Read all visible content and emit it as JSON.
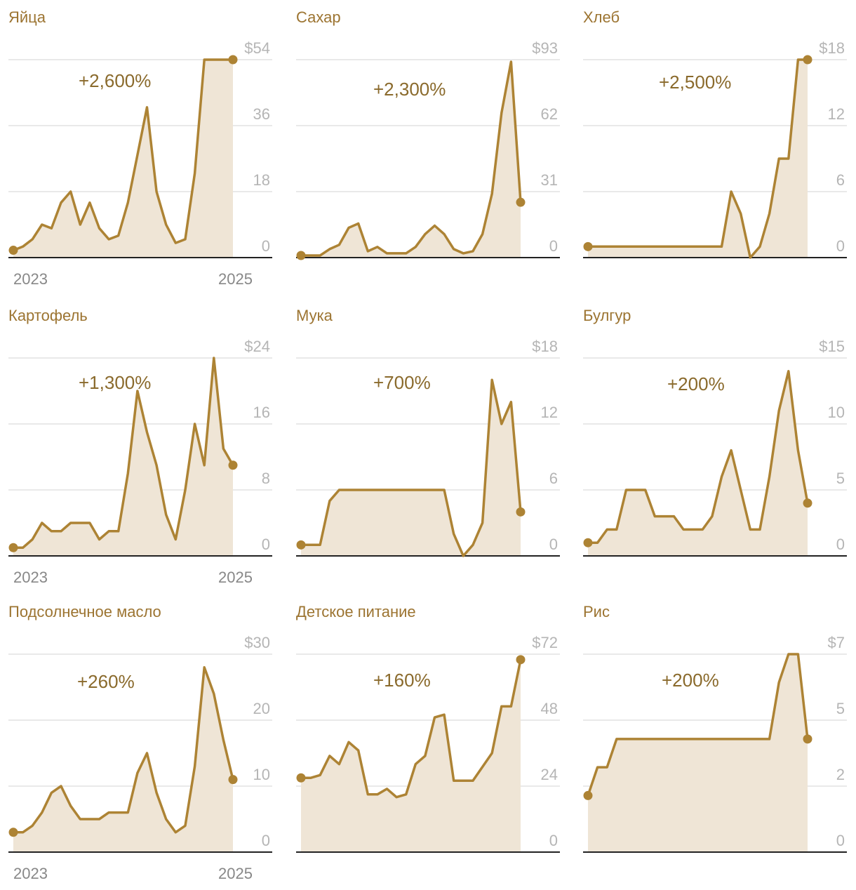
{
  "colors": {
    "line": "#ad8334",
    "fill": "#efe5d6",
    "grid": "#e2e2e2",
    "baseline": "#222222",
    "title": "#9c7431",
    "change": "#8a6a2c",
    "tick": "#b5b5b5",
    "year": "#888888"
  },
  "chart_data": [
    {
      "type": "area",
      "title": "Яйца",
      "change_label": "+2,600%",
      "y_ticks": [
        "0",
        "18",
        "36",
        "$54"
      ],
      "ylim": [
        0,
        54
      ],
      "x_labels": [
        "2023",
        "2025"
      ],
      "values": [
        2,
        3,
        5,
        9,
        8,
        15,
        18,
        9,
        15,
        8,
        5,
        6,
        15,
        28,
        41,
        18,
        9,
        4,
        5,
        23,
        54,
        54,
        54,
        54
      ]
    },
    {
      "type": "area",
      "title": "Сахар",
      "change_label": "+2,300%",
      "y_ticks": [
        "0",
        "31",
        "62",
        "$93"
      ],
      "ylim": [
        0,
        93
      ],
      "x_labels": [],
      "values": [
        1,
        1,
        1,
        4,
        6,
        14,
        16,
        3,
        5,
        2,
        2,
        2,
        5,
        11,
        15,
        11,
        4,
        2,
        3,
        11,
        30,
        68,
        92,
        26
      ]
    },
    {
      "type": "area",
      "title": "Хлеб",
      "change_label": "+2,500%",
      "y_ticks": [
        "0",
        "6",
        "12",
        "$18"
      ],
      "ylim": [
        0,
        18
      ],
      "x_labels": [],
      "values": [
        1,
        1,
        1,
        1,
        1,
        1,
        1,
        1,
        1,
        1,
        1,
        1,
        1,
        1,
        1,
        6,
        4,
        0,
        1,
        4,
        9,
        9,
        18,
        18
      ]
    },
    {
      "type": "area",
      "title": "Картофель",
      "change_label": "+1,300%",
      "y_ticks": [
        "0",
        "8",
        "16",
        "$24"
      ],
      "ylim": [
        0,
        24
      ],
      "x_labels": [
        "2023",
        "2025"
      ],
      "values": [
        1,
        1,
        2,
        4,
        3,
        3,
        4,
        4,
        4,
        2,
        3,
        3,
        10,
        20,
        15,
        11,
        5,
        2,
        8,
        16,
        11,
        24,
        13,
        11
      ]
    },
    {
      "type": "area",
      "title": "Мука",
      "change_label": "+700%",
      "y_ticks": [
        "0",
        "6",
        "12",
        "$18"
      ],
      "ylim": [
        0,
        18
      ],
      "x_labels": [],
      "values": [
        1,
        1,
        1,
        5,
        6,
        6,
        6,
        6,
        6,
        6,
        6,
        6,
        6,
        6,
        6,
        6,
        2,
        0,
        1,
        3,
        16,
        12,
        14,
        4
      ]
    },
    {
      "type": "area",
      "title": "Булгур",
      "change_label": "+200%",
      "y_ticks": [
        "0",
        "5",
        "10",
        "$15"
      ],
      "ylim": [
        0,
        15
      ],
      "x_labels": [],
      "values": [
        1,
        1,
        2,
        2,
        5,
        5,
        5,
        3,
        3,
        3,
        2,
        2,
        2,
        3,
        6,
        8,
        5,
        2,
        2,
        6,
        11,
        14,
        8,
        4
      ]
    },
    {
      "type": "area",
      "title": "Подсолнечное масло",
      "change_label": "+260%",
      "y_ticks": [
        "0",
        "10",
        "20",
        "$30"
      ],
      "ylim": [
        0,
        30
      ],
      "x_labels": [
        "2023",
        "2025"
      ],
      "values": [
        3,
        3,
        4,
        6,
        9,
        10,
        7,
        5,
        5,
        5,
        6,
        6,
        6,
        12,
        15,
        9,
        5,
        3,
        4,
        13,
        28,
        24,
        17,
        11
      ]
    },
    {
      "type": "area",
      "title": "Детское питание",
      "change_label": "+160%",
      "y_ticks": [
        "0",
        "24",
        "48",
        "$72"
      ],
      "ylim": [
        0,
        72
      ],
      "x_labels": [],
      "values": [
        27,
        27,
        28,
        35,
        32,
        40,
        37,
        21,
        21,
        23,
        20,
        21,
        32,
        35,
        49,
        50,
        26,
        26,
        26,
        31,
        36,
        53,
        53,
        70
      ]
    },
    {
      "type": "area",
      "title": "Рис",
      "change_label": "+200%",
      "y_ticks": [
        "0",
        "2",
        "5",
        "$7"
      ],
      "ylim": [
        0,
        7
      ],
      "x_labels": [],
      "values": [
        2,
        3,
        3,
        4,
        4,
        4,
        4,
        4,
        4,
        4,
        4,
        4,
        4,
        4,
        4,
        4,
        4,
        4,
        4,
        4,
        6,
        7,
        7,
        4
      ]
    }
  ]
}
